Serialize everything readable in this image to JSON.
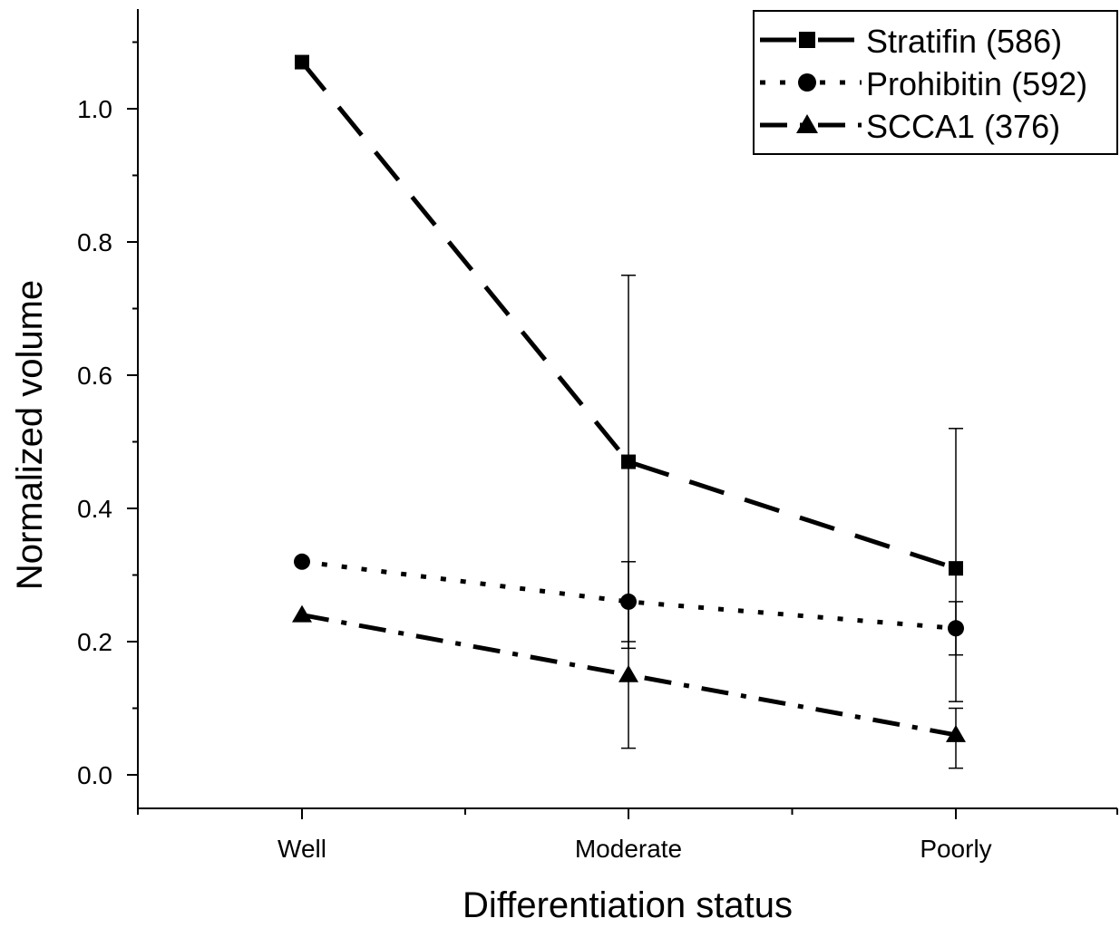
{
  "chart_data": {
    "type": "line",
    "title": "",
    "xlabel": "Differentiation status",
    "ylabel": "Normalized volume",
    "categories": [
      "Well",
      "Moderate",
      "Poorly"
    ],
    "ylim": [
      -0.05,
      1.14
    ],
    "yticks": [
      "0.0",
      "0.2",
      "0.4",
      "0.6",
      "0.8",
      "1.0"
    ],
    "grid": false,
    "legend_position": "top-right",
    "series": [
      {
        "name": "Stratifin (586)",
        "marker": "square",
        "line_style": "dash",
        "values": [
          1.07,
          0.47,
          0.31
        ],
        "error_low": [
          null,
          0.19,
          0.11
        ],
        "error_high": [
          null,
          0.75,
          0.52
        ]
      },
      {
        "name": "Prohibitin (592)",
        "marker": "circle",
        "line_style": "dot",
        "values": [
          0.32,
          0.26,
          0.22
        ],
        "error_low": [
          null,
          0.2,
          0.18
        ],
        "error_high": [
          null,
          0.32,
          0.26
        ]
      },
      {
        "name": "SCCA1 (376)",
        "marker": "triangle",
        "line_style": "dash-dot",
        "values": [
          0.24,
          0.15,
          0.06
        ],
        "error_low": [
          null,
          0.04,
          0.01
        ],
        "error_high": [
          null,
          0.26,
          0.1
        ]
      }
    ]
  }
}
